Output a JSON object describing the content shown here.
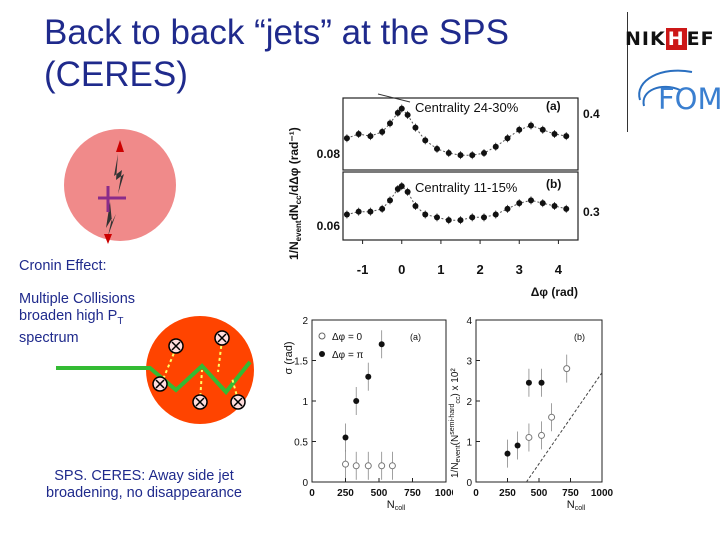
{
  "slide": {
    "title_line1": "Back to back “jets” at the SPS",
    "title_line2": "(CERES)",
    "cronin_label": "Cronin Effect:",
    "multiple_line1": "Multiple Collisions",
    "multiple_line2": "broaden high P",
    "multiple_sub": "T",
    "multiple_line3": "spectrum",
    "conclusion_line1": "SPS. CERES: Away side jet",
    "conclusion_line2": "broadening, no disappearance"
  },
  "logos": {
    "nikhef_pre": "NI",
    "nikhef_k": "K",
    "nikhef_h": "H",
    "nikhef_post": "EF",
    "fom": "FOM"
  },
  "top_figure": {
    "ylabel": "1/N",
    "ylabel_sub_event": "event",
    "ylabel_mid": "dN",
    "ylabel_sub_cc": "cc",
    "ylabel_end": "/dΔφ (rad⁻¹)",
    "xlabel": "Δφ (rad)",
    "x_ticks": [
      "-1",
      "0",
      "1",
      "2",
      "3",
      "4"
    ],
    "panel_a": {
      "legend": "Centrality 24-30%",
      "tag": "(a)",
      "left_tick": "0.08",
      "right_tick": "0.4"
    },
    "panel_b": {
      "legend": "Centrality 11-15%",
      "tag": "(b)",
      "left_tick": "0.06",
      "right_tick": "0.3"
    }
  },
  "bottom_left_plot": {
    "ylabel": "σ (rad)",
    "xlabel": "N",
    "xlabel_sub": "coll",
    "tag": "(a)",
    "legend_open": "Δφ = 0",
    "legend_filled": "Δφ = π",
    "y_ticks": [
      "0",
      "0.5",
      "1",
      "1.5",
      "2"
    ],
    "x_ticks": [
      "0",
      "250",
      "500",
      "750",
      "1000"
    ]
  },
  "bottom_right_plot": {
    "ylabel": "1/N",
    "ylabel_sub_event": "event",
    "ylabel_mid": "(N",
    "ylabel_sup": "semi-hard",
    "ylabel_sub_cc": "cc",
    "ylabel_end": ") x 10²",
    "xlabel": "N",
    "xlabel_sub": "coll",
    "tag": "(b)",
    "y_ticks": [
      "0",
      "1",
      "2",
      "3",
      "4"
    ],
    "x_ticks": [
      "0",
      "250",
      "500",
      "750",
      "1000"
    ]
  },
  "chart_data": [
    {
      "type": "scatter",
      "title": "Centrality 24-30% (a)",
      "xlabel": "Δφ (rad)",
      "ylabel": "1/N_event dN_cc/dΔφ (rad⁻¹)",
      "xlim": [
        -1.5,
        4.5
      ],
      "series": [
        {
          "name": "Centrality 24-30%",
          "x": [
            -1.4,
            -1.1,
            -0.8,
            -0.5,
            -0.3,
            -0.1,
            0.0,
            0.15,
            0.35,
            0.6,
            0.9,
            1.2,
            1.5,
            1.8,
            2.1,
            2.4,
            2.7,
            3.0,
            3.3,
            3.6,
            3.9,
            4.2
          ],
          "y": [
            0.085,
            0.087,
            0.086,
            0.088,
            0.092,
            0.097,
            0.099,
            0.096,
            0.09,
            0.084,
            0.08,
            0.078,
            0.077,
            0.077,
            0.078,
            0.081,
            0.085,
            0.089,
            0.091,
            0.089,
            0.087,
            0.086
          ]
        }
      ]
    },
    {
      "type": "scatter",
      "title": "Centrality 11-15% (b)",
      "xlabel": "Δφ (rad)",
      "ylabel": "1/N_event dN_cc/dΔφ (rad⁻¹)",
      "xlim": [
        -1.5,
        4.5
      ],
      "series": [
        {
          "name": "Centrality 11-15%",
          "x": [
            -1.4,
            -1.1,
            -0.8,
            -0.5,
            -0.3,
            -0.1,
            0.0,
            0.15,
            0.35,
            0.6,
            0.9,
            1.2,
            1.5,
            1.8,
            2.1,
            2.4,
            2.7,
            3.0,
            3.3,
            3.6,
            3.9,
            4.2
          ],
          "y": [
            0.061,
            0.062,
            0.062,
            0.063,
            0.066,
            0.07,
            0.071,
            0.069,
            0.064,
            0.061,
            0.06,
            0.059,
            0.059,
            0.06,
            0.06,
            0.061,
            0.063,
            0.065,
            0.066,
            0.065,
            0.064,
            0.063
          ]
        }
      ]
    },
    {
      "type": "scatter",
      "title": "(a)",
      "xlabel": "N_coll",
      "ylabel": "σ (rad)",
      "xlim": [
        0,
        1000
      ],
      "ylim": [
        0,
        2
      ],
      "series": [
        {
          "name": "Δφ = 0",
          "marker": "open",
          "x": [
            250,
            330,
            420,
            520,
            600
          ],
          "y": [
            0.22,
            0.2,
            0.2,
            0.2,
            0.2
          ]
        },
        {
          "name": "Δφ = π",
          "marker": "filled",
          "x": [
            250,
            330,
            420,
            520
          ],
          "y": [
            0.55,
            1.0,
            1.3,
            1.7
          ]
        }
      ]
    },
    {
      "type": "scatter",
      "title": "(b)",
      "xlabel": "N_coll",
      "ylabel": "1/N_event (N_cc^semi-hard) x 10²",
      "xlim": [
        0,
        1000
      ],
      "ylim": [
        0,
        4
      ],
      "series": [
        {
          "name": "Δφ = π",
          "marker": "filled",
          "x": [
            250,
            330,
            420,
            520
          ],
          "y": [
            0.7,
            0.9,
            2.45,
            2.45
          ]
        },
        {
          "name": "Δφ = 0",
          "marker": "open",
          "x": [
            420,
            520,
            600,
            720
          ],
          "y": [
            1.1,
            1.15,
            1.6,
            2.8
          ]
        },
        {
          "name": "linear fit",
          "marker": "dashed-line",
          "x": [
            400,
            1000
          ],
          "y": [
            0,
            2.7
          ]
        }
      ]
    }
  ]
}
